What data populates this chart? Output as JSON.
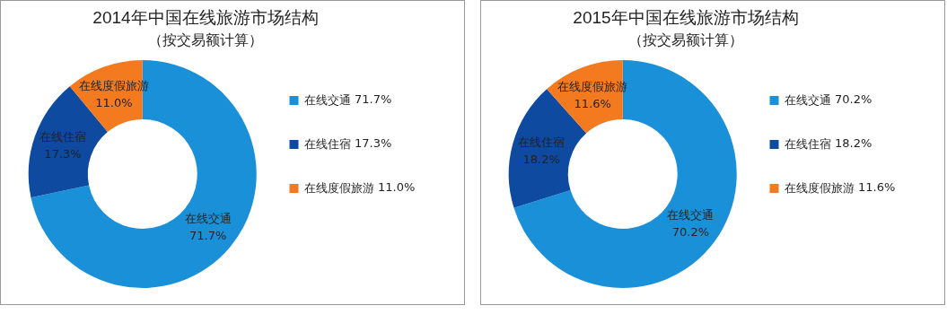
{
  "chart_data": [
    {
      "type": "donut",
      "title": "2014年中国在线旅游市场结构",
      "subtitle": "（按交易额计算）",
      "categories": [
        "在线交通",
        "在线住宿",
        "在线度假旅游"
      ],
      "values": [
        71.7,
        17.3,
        11.0
      ],
      "value_labels": [
        "71.7%",
        "17.3%",
        "11.0%"
      ],
      "colors": [
        "#1a90d9",
        "#0d4aa0",
        "#f47a20"
      ],
      "legend": "right"
    },
    {
      "type": "donut",
      "title": "2015年中国在线旅游市场结构",
      "subtitle": "（按交易额计算）",
      "categories": [
        "在线交通",
        "在线住宿",
        "在线度假旅游"
      ],
      "values": [
        70.2,
        18.2,
        11.6
      ],
      "value_labels": [
        "70.2%",
        "18.2%",
        "11.6%"
      ],
      "colors": [
        "#1a90d9",
        "#0d4aa0",
        "#f47a20"
      ],
      "legend": "right"
    }
  ]
}
